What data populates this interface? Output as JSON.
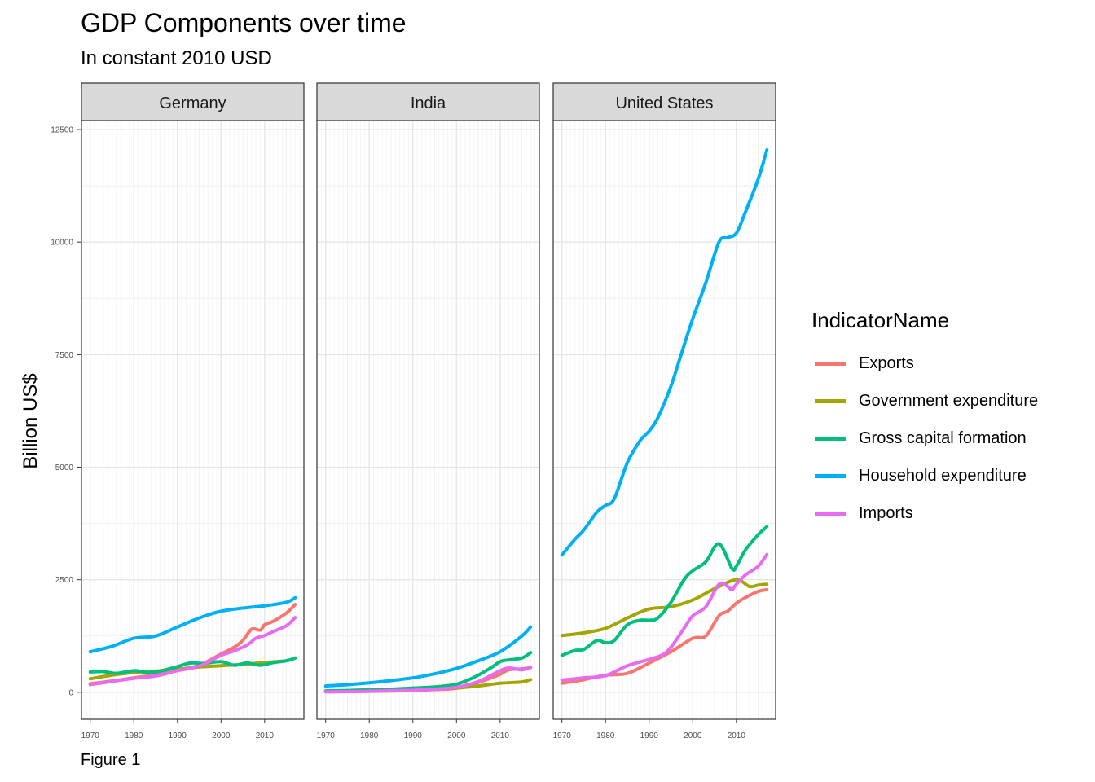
{
  "figure": {
    "title": "GDP Components over time",
    "subtitle": "In constant 2010 USD",
    "caption": "Figure 1",
    "ylabel": "Billion US$",
    "legend_title": "IndicatorName"
  },
  "chart_data": {
    "type": "line",
    "title": "GDP Components over time",
    "subtitle": "In constant 2010 USD",
    "xlabel": "",
    "ylabel": "Billion US$",
    "ylim": [
      -600,
      12700
    ],
    "xlim": [
      1968,
      2019
    ],
    "yticks": [
      0,
      2500,
      5000,
      7500,
      10000,
      12500
    ],
    "xticks": [
      1970,
      1980,
      1990,
      2000,
      2010
    ],
    "grid": true,
    "legend_position": "right",
    "legend_title": "IndicatorName",
    "colors": {
      "Exports": "#F8766D",
      "Government expenditure": "#A3A500",
      "Gross capital formation": "#00BF7D",
      "Household expenditure": "#00B0F6",
      "Imports": "#E76BF3"
    },
    "series_order": [
      "Exports",
      "Government expenditure",
      "Gross capital formation",
      "Household expenditure",
      "Imports"
    ],
    "panels": [
      {
        "name": "Germany",
        "series": [
          {
            "name": "Exports",
            "x": [
              1970,
              1975,
              1980,
              1985,
              1990,
              1995,
              2000,
              2003,
              2005,
              2007,
              2009,
              2010,
              2012,
              2015,
              2017
            ],
            "values": [
              190,
              250,
              320,
              390,
              480,
              600,
              850,
              1000,
              1150,
              1400,
              1380,
              1500,
              1580,
              1760,
              1950
            ]
          },
          {
            "name": "Government expenditure",
            "x": [
              1970,
              1975,
              1980,
              1985,
              1990,
              1995,
              2000,
              2005,
              2010,
              2015,
              2017
            ],
            "values": [
              300,
              380,
              440,
              470,
              510,
              560,
              590,
              620,
              660,
              700,
              760
            ]
          },
          {
            "name": "Gross capital formation",
            "x": [
              1970,
              1973,
              1976,
              1980,
              1983,
              1986,
              1990,
              1993,
              1996,
              2000,
              2003,
              2006,
              2009,
              2012,
              2015,
              2017
            ],
            "values": [
              450,
              460,
              420,
              480,
              440,
              470,
              570,
              650,
              640,
              680,
              600,
              650,
              600,
              660,
              700,
              760
            ]
          },
          {
            "name": "Household expenditure",
            "x": [
              1970,
              1975,
              1980,
              1985,
              1990,
              1995,
              2000,
              2005,
              2010,
              2015,
              2017
            ],
            "values": [
              900,
              1020,
              1200,
              1250,
              1450,
              1650,
              1800,
              1870,
              1920,
              2000,
              2100
            ]
          },
          {
            "name": "Imports",
            "x": [
              1970,
              1975,
              1980,
              1985,
              1990,
              1995,
              2000,
              2003,
              2006,
              2008,
              2010,
              2012,
              2015,
              2017
            ],
            "values": [
              170,
              240,
              310,
              360,
              480,
              580,
              820,
              920,
              1050,
              1200,
              1260,
              1350,
              1480,
              1660
            ]
          }
        ]
      },
      {
        "name": "India",
        "series": [
          {
            "name": "Exports",
            "x": [
              1970,
              1975,
              1980,
              1985,
              1990,
              1995,
              2000,
              2005,
              2008,
              2010,
              2012,
              2015,
              2017
            ],
            "values": [
              10,
              15,
              20,
              28,
              40,
              60,
              90,
              220,
              320,
              400,
              500,
              520,
              550
            ]
          },
          {
            "name": "Government expenditure",
            "x": [
              1970,
              1975,
              1980,
              1985,
              1990,
              1995,
              2000,
              2005,
              2010,
              2015,
              2017
            ],
            "values": [
              20,
              28,
              38,
              50,
              60,
              75,
              95,
              140,
              200,
              230,
              280
            ]
          },
          {
            "name": "Gross capital formation",
            "x": [
              1970,
              1975,
              1980,
              1985,
              1990,
              1995,
              2000,
              2004,
              2008,
              2010,
              2012,
              2015,
              2017
            ],
            "values": [
              30,
              40,
              55,
              70,
              95,
              120,
              180,
              330,
              550,
              680,
              720,
              760,
              880
            ]
          },
          {
            "name": "Household expenditure",
            "x": [
              1970,
              1975,
              1980,
              1985,
              1990,
              1995,
              2000,
              2005,
              2010,
              2015,
              2017
            ],
            "values": [
              140,
              170,
              210,
              260,
              320,
              410,
              530,
              700,
              900,
              1250,
              1450
            ]
          },
          {
            "name": "Imports",
            "x": [
              1970,
              1975,
              1980,
              1985,
              1990,
              1995,
              2000,
              2005,
              2008,
              2010,
              2012,
              2015,
              2017
            ],
            "values": [
              10,
              15,
              25,
              35,
              45,
              70,
              110,
              240,
              380,
              480,
              540,
              500,
              560
            ]
          }
        ]
      },
      {
        "name": "United States",
        "series": [
          {
            "name": "Exports",
            "x": [
              1970,
              1975,
              1980,
              1985,
              1990,
              1995,
              2000,
              2003,
              2006,
              2008,
              2010,
              2012,
              2015,
              2017
            ],
            "values": [
              200,
              280,
              380,
              420,
              650,
              900,
              1200,
              1250,
              1700,
              1800,
              1980,
              2100,
              2240,
              2280
            ]
          },
          {
            "name": "Government expenditure",
            "x": [
              1970,
              1975,
              1980,
              1985,
              1990,
              1995,
              2000,
              2005,
              2010,
              2013,
              2015,
              2017
            ],
            "values": [
              1260,
              1320,
              1420,
              1650,
              1850,
              1900,
              2050,
              2300,
              2500,
              2350,
              2380,
              2400
            ]
          },
          {
            "name": "Gross capital formation",
            "x": [
              1970,
              1973,
              1975,
              1978,
              1980,
              1982,
              1985,
              1988,
              1990,
              1992,
              1995,
              1998,
              2000,
              2003,
              2006,
              2009,
              2010,
              2012,
              2015,
              2017
            ],
            "values": [
              820,
              930,
              950,
              1150,
              1100,
              1150,
              1500,
              1600,
              1600,
              1650,
              2000,
              2500,
              2700,
              2900,
              3300,
              2750,
              2800,
              3150,
              3500,
              3680
            ]
          },
          {
            "name": "Household expenditure",
            "x": [
              1970,
              1973,
              1975,
              1978,
              1980,
              1982,
              1985,
              1988,
              1990,
              1992,
              1995,
              1997,
              2000,
              2003,
              2006,
              2008,
              2010,
              2012,
              2015,
              2017
            ],
            "values": [
              3050,
              3400,
              3600,
              4000,
              4150,
              4300,
              5100,
              5600,
              5800,
              6100,
              6800,
              7400,
              8300,
              9100,
              10000,
              10100,
              10200,
              10650,
              11400,
              12050
            ]
          },
          {
            "name": "Imports",
            "x": [
              1970,
              1975,
              1980,
              1985,
              1990,
              1993,
              1995,
              1998,
              2000,
              2003,
              2006,
              2008,
              2009,
              2010,
              2012,
              2015,
              2017
            ],
            "values": [
              270,
              320,
              370,
              590,
              730,
              830,
              1000,
              1420,
              1700,
              1900,
              2400,
              2350,
              2280,
              2400,
              2600,
              2800,
              3060
            ]
          }
        ]
      }
    ]
  }
}
